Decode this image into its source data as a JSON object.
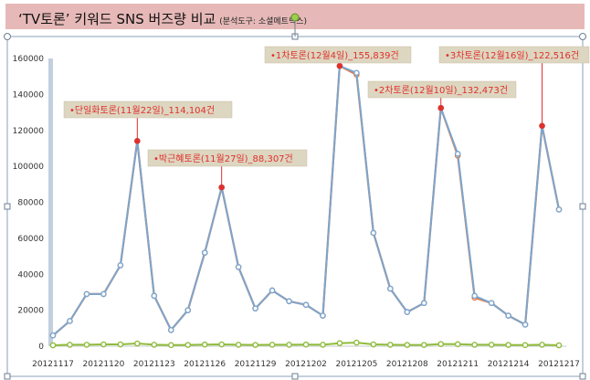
{
  "header": {
    "title": "‘TV토론’ 키워드 SNS 버즈량 비교",
    "subtitle": "(분석도구: 소셜메트릭스)"
  },
  "colors": {
    "band": "#e6b9b8",
    "line_primary": "#7aa6cf",
    "line_secondary": "#e8763c",
    "line_low": "#8fbc3c",
    "annotation_box": "#ddd6c0",
    "annotation_text": "#e0302c",
    "annotation_line": "#e0302c",
    "axis_bar": "#c3cfdf"
  },
  "chart_data": {
    "type": "line",
    "title": "‘TV토론’ 키워드 SNS 버즈량 비교",
    "xlabel": "",
    "ylabel": "",
    "ylim": [
      0,
      160000
    ],
    "yticks": [
      0,
      20000,
      40000,
      60000,
      80000,
      100000,
      120000,
      140000,
      160000
    ],
    "x": [
      "20121117",
      "20121118",
      "20121119",
      "20121120",
      "20121121",
      "20121122",
      "20121123",
      "20121124",
      "20121125",
      "20121126",
      "20121127",
      "20121128",
      "20121129",
      "20121130",
      "20121201",
      "20121202",
      "20121203",
      "20121204",
      "20121205",
      "20121206",
      "20121207",
      "20121208",
      "20121209",
      "20121210",
      "20121211",
      "20121212",
      "20121213",
      "20121214",
      "20121215",
      "20121216",
      "20121217"
    ],
    "x_tick_labels": [
      "20121117",
      "20121120",
      "20121123",
      "20121126",
      "20121129",
      "20121202",
      "20121205",
      "20121208",
      "20121211",
      "20121214",
      "20121217"
    ],
    "series": [
      {
        "values": [
          6000,
          14000,
          29000,
          29000,
          45000,
          114104,
          28000,
          9000,
          20000,
          52000,
          88307,
          44000,
          21000,
          31000,
          25000,
          23000,
          17000,
          155839,
          151000,
          63000,
          32000,
          19000,
          24000,
          132473,
          106000,
          27000,
          24000,
          17000,
          12000,
          122516,
          76000
        ]
      },
      {
        "values": [
          6000,
          14000,
          29000,
          29000,
          45000,
          114104,
          28000,
          9000,
          20000,
          52000,
          88307,
          44000,
          21000,
          31000,
          25000,
          23000,
          17000,
          155839,
          152000,
          63000,
          32000,
          19000,
          24000,
          132473,
          107000,
          28000,
          24000,
          17000,
          12000,
          122516,
          76000
        ]
      },
      {
        "values": [
          500,
          800,
          800,
          1000,
          1000,
          1500,
          800,
          600,
          700,
          900,
          1000,
          800,
          700,
          800,
          800,
          900,
          800,
          1700,
          2000,
          1000,
          800,
          700,
          700,
          1200,
          1100,
          800,
          800,
          700,
          600,
          800,
          500
        ]
      }
    ],
    "annotations": [
      {
        "text": "•단일화토론(11월22일)_114,104건",
        "index": 5,
        "value": 114104
      },
      {
        "text": "•박근혜토론(11월27일)_88,307건",
        "index": 10,
        "value": 88307
      },
      {
        "text": "•1차토론(12월4일)_155,839건",
        "index": 17,
        "value": 155839
      },
      {
        "text": "•2차토론(12월10일)_132,473건",
        "index": 23,
        "value": 132473
      },
      {
        "text": "•3차토론(12월16일)_122,516건",
        "index": 29,
        "value": 122516
      }
    ],
    "grid": false,
    "legend": "none"
  }
}
